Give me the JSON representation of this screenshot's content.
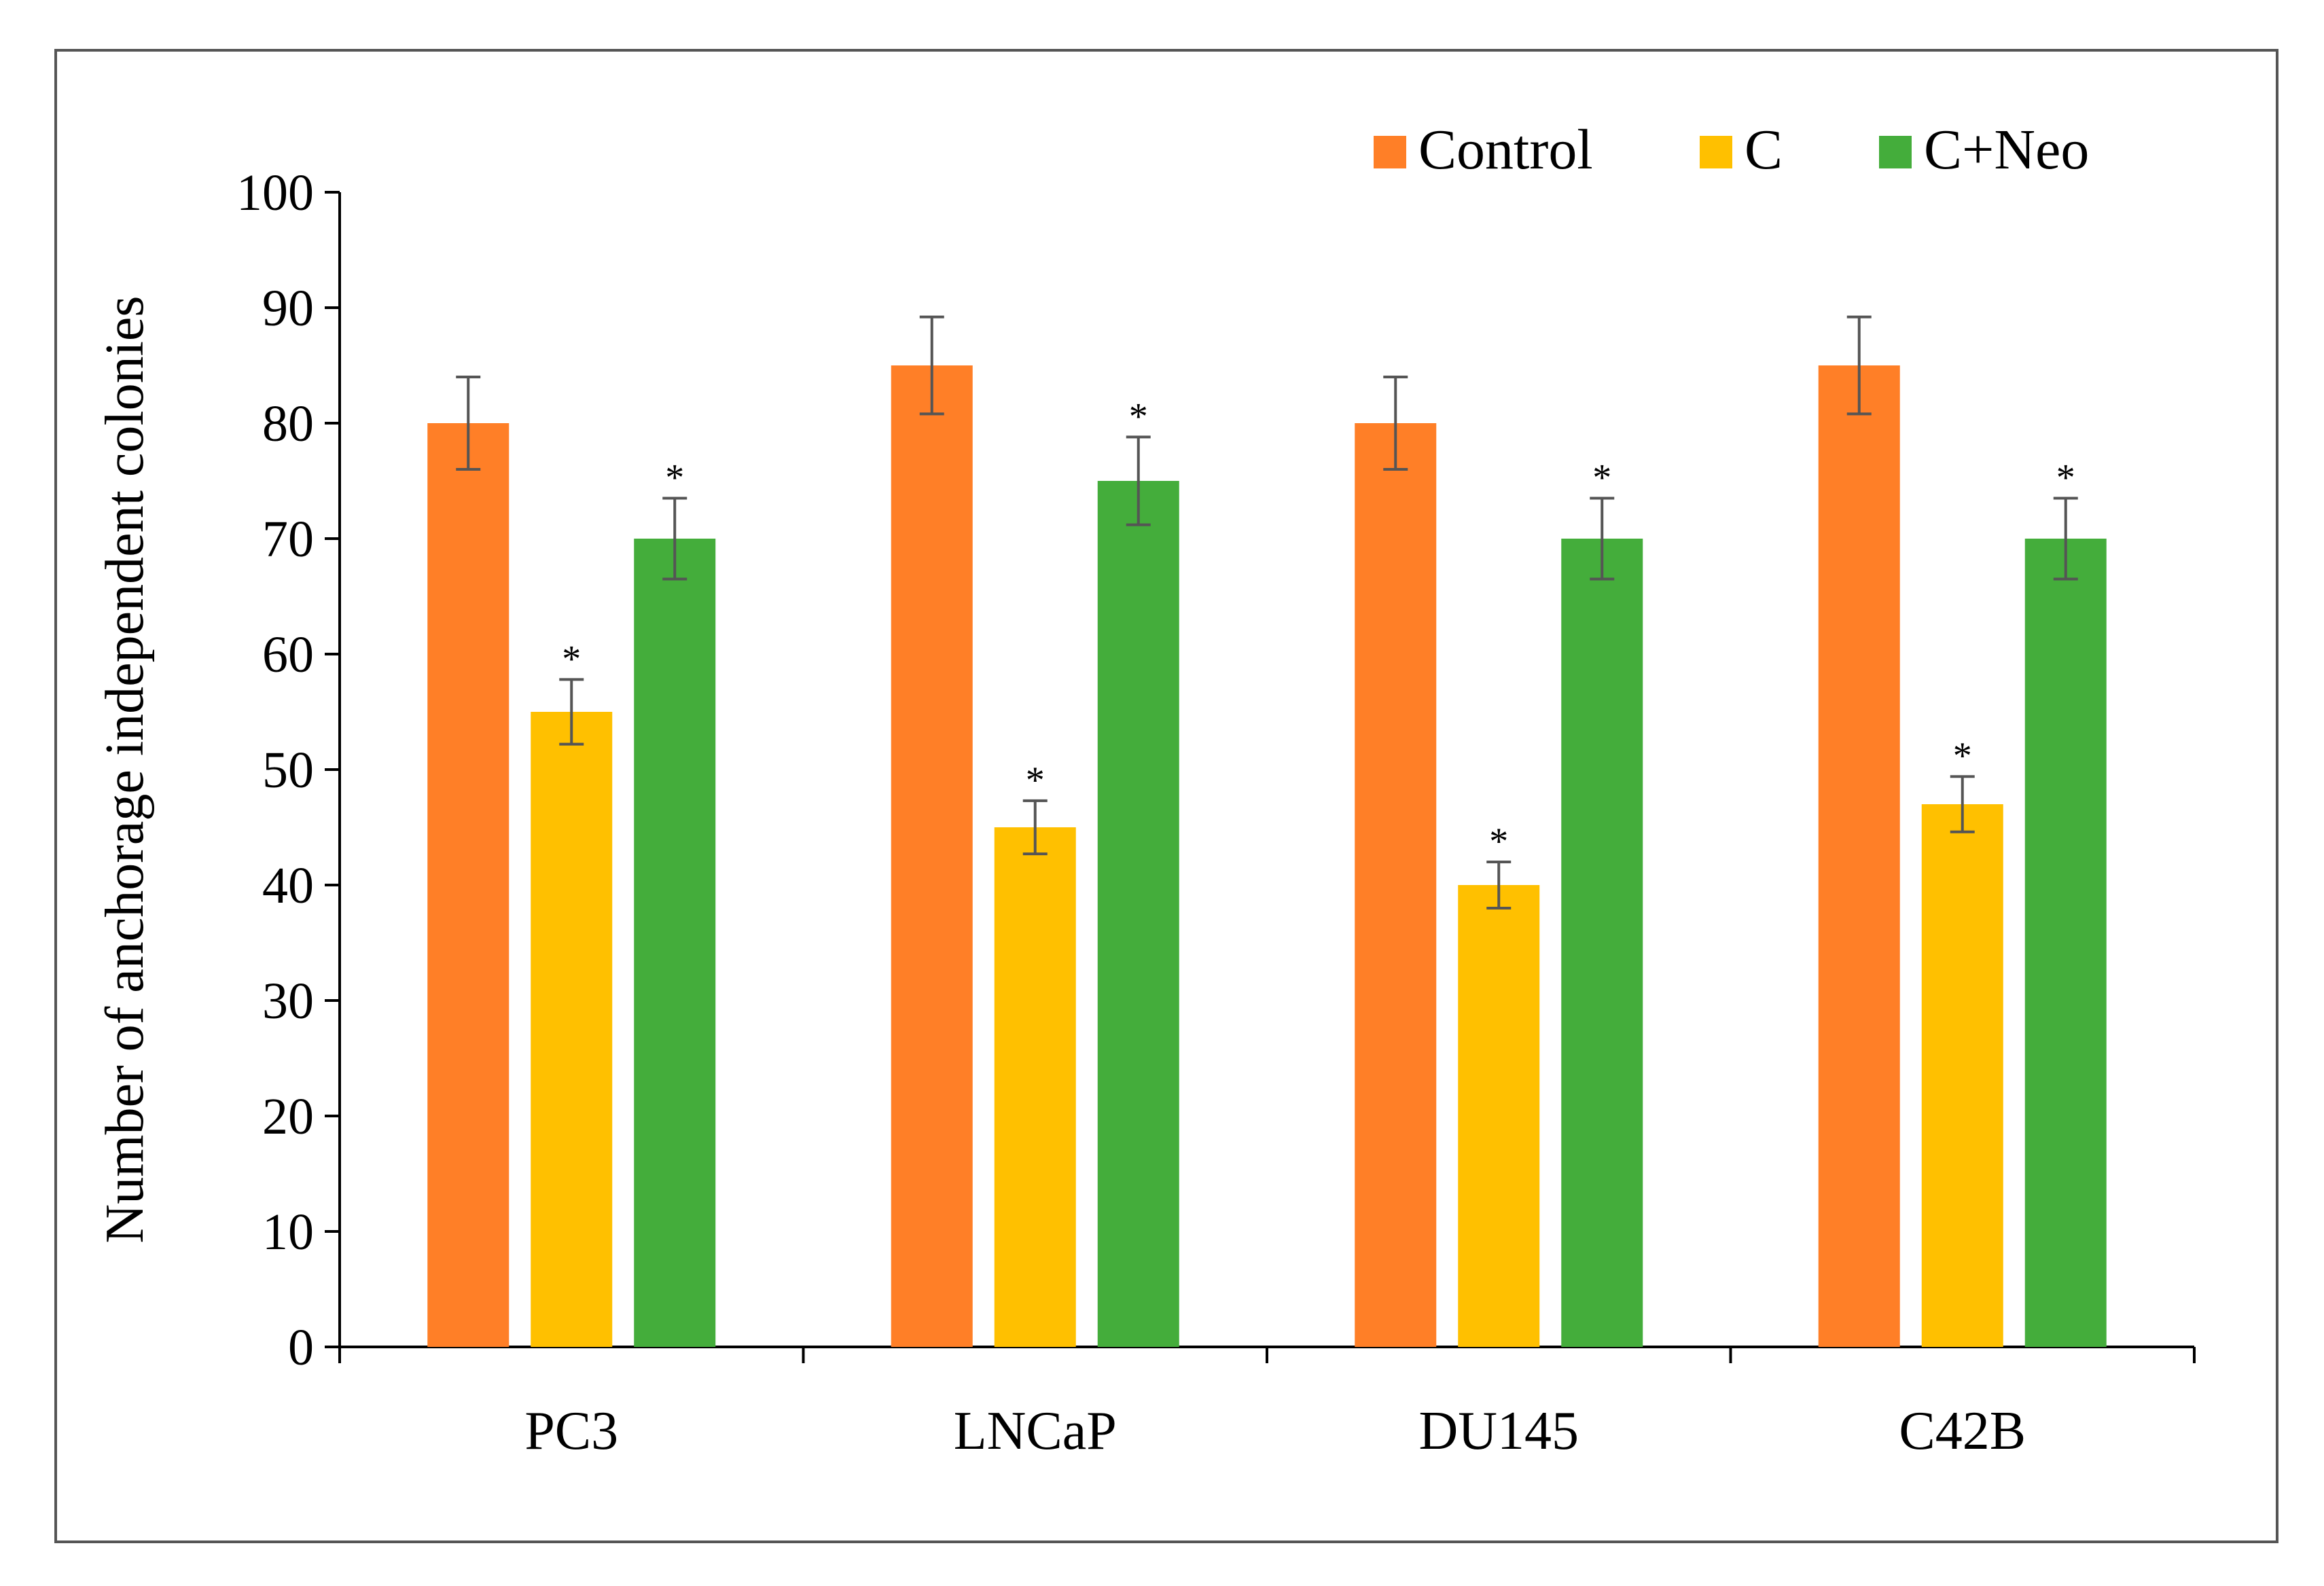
{
  "chart_data": {
    "type": "bar",
    "title": "",
    "xlabel": "",
    "ylabel": "Number of anchorage independent colonies",
    "ylim": [
      0,
      100
    ],
    "yticks": [
      0,
      10,
      20,
      30,
      40,
      50,
      60,
      70,
      80,
      90,
      100
    ],
    "categories": [
      "PC3",
      "LNCaP",
      "DU145",
      "C42B"
    ],
    "series": [
      {
        "name": "Control",
        "color": "#FF7F27",
        "values": [
          80,
          85,
          80,
          85
        ],
        "errors": [
          4,
          4.2,
          4,
          4.2
        ],
        "significant": [
          false,
          false,
          false,
          false
        ]
      },
      {
        "name": "C",
        "color": "#FFC000",
        "values": [
          55,
          45,
          40,
          47
        ],
        "errors": [
          2.8,
          2.3,
          2,
          2.4
        ],
        "significant": [
          true,
          true,
          true,
          true
        ]
      },
      {
        "name": "C+Neo",
        "color": "#44AD3B",
        "values": [
          70,
          75,
          70,
          70
        ],
        "errors": [
          3.5,
          3.8,
          3.5,
          3.5
        ],
        "significant": [
          true,
          true,
          true,
          true
        ]
      }
    ],
    "significance_marker": "*",
    "legend_position": "top-right",
    "grid": false
  }
}
